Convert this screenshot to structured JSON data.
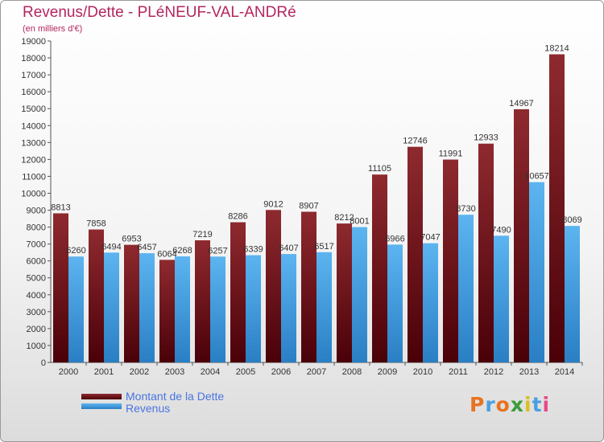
{
  "header": {
    "title": "Revenus/Dette - PLéNEUF-VAL-ANDRé",
    "subtitle": "(en milliers d'€)"
  },
  "legend": [
    {
      "label": "Montant de la Dette",
      "color": "#7a1a1f"
    },
    {
      "label": "Revenus",
      "color": "#4ea6e6"
    }
  ],
  "logo": {
    "text": "Proxiti",
    "colors": [
      "#e8731f",
      "#4a9fe0",
      "#e8731f",
      "#3a9c3a",
      "#d8c020",
      "#4a9fe0",
      "#e84a8a"
    ]
  },
  "chart_data": {
    "type": "bar",
    "title": "Revenus/Dette - PLéNEUF-VAL-ANDRé",
    "subtitle": "(en milliers d'€)",
    "categories": [
      "2000",
      "2001",
      "2002",
      "2003",
      "2004",
      "2005",
      "2006",
      "2007",
      "2008",
      "2009",
      "2010",
      "2011",
      "2012",
      "2013",
      "2014"
    ],
    "series": [
      {
        "name": "Montant de la Dette",
        "color": "#7a1a1f",
        "values": [
          8813,
          7858,
          6953,
          6064,
          7219,
          8286,
          9012,
          8907,
          8212,
          11105,
          12746,
          11991,
          12933,
          14967,
          18214
        ]
      },
      {
        "name": "Revenus",
        "color": "#4ea6e6",
        "values": [
          6260,
          6494,
          6457,
          6268,
          6257,
          6339,
          6407,
          6517,
          8001,
          6966,
          7047,
          8730,
          7490,
          10657,
          8069
        ]
      }
    ],
    "ylim": [
      0,
      19000
    ],
    "ytick_step": 1000,
    "grid": false,
    "legend_position": "bottom-left"
  }
}
